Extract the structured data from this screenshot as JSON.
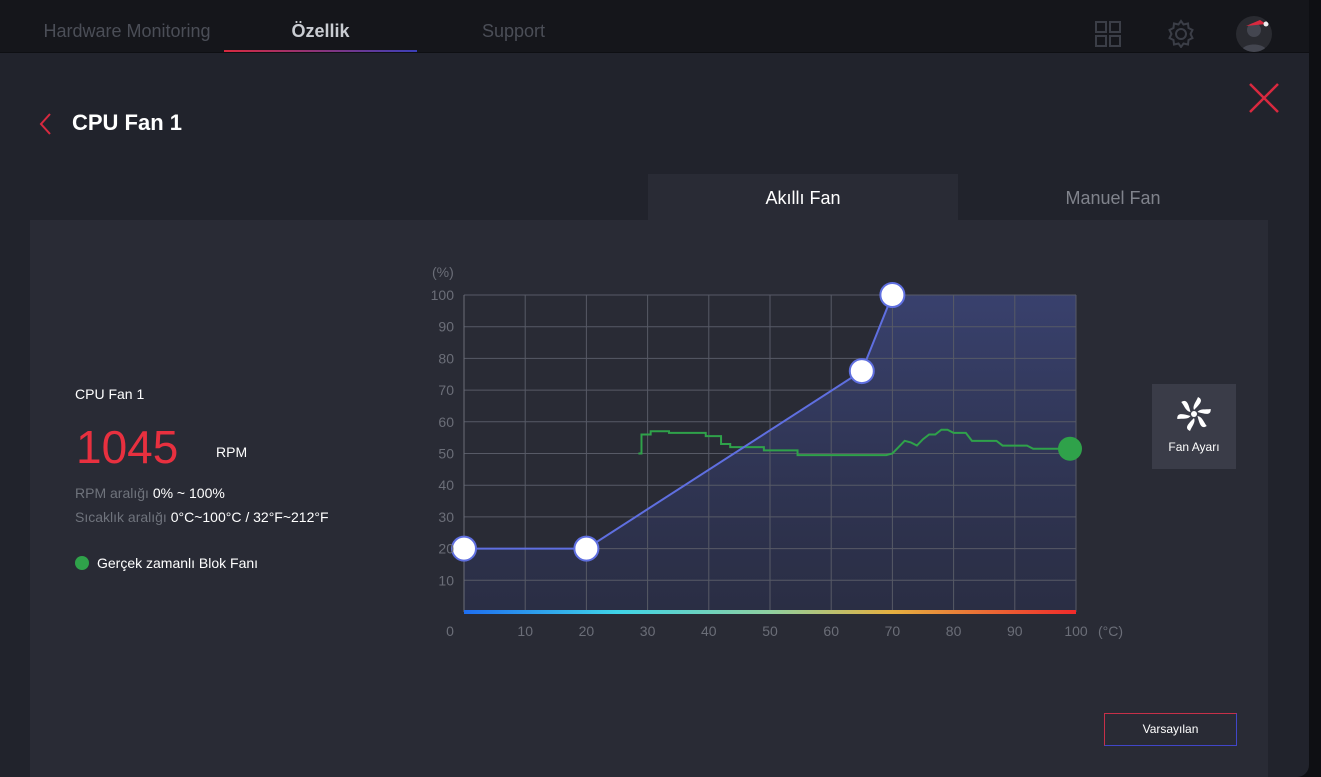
{
  "nav": {
    "tabs": [
      {
        "label": "Hardware Monitoring",
        "active": false
      },
      {
        "label": "Özellik",
        "active": true
      },
      {
        "label": "Support",
        "active": false
      }
    ],
    "icons": [
      "grid-icon",
      "gear-icon",
      "avatar"
    ]
  },
  "header": {
    "title": "CPU Fan 1"
  },
  "mode_tabs": [
    {
      "label": "Akıllı Fan",
      "active": true
    },
    {
      "label": "Manuel Fan",
      "active": false
    }
  ],
  "info": {
    "fan_name": "CPU Fan 1",
    "rpm": "1045",
    "rpm_unit": "RPM",
    "rpm_range_label": "RPM aralığı",
    "rpm_range_value": "0% ~ 100%",
    "temp_range_label": "Sıcaklık aralığı",
    "temp_range_value": "0°C~100°C / 32°F~212°F",
    "legend_label": "Gerçek zamanlı Blok Fanı"
  },
  "fan_settings_label": "Fan Ayarı",
  "default_button": "Varsayılan",
  "colors": {
    "accent_red": "#e8303f",
    "curve": "#5f6fe0",
    "realtime": "#2fa24a"
  },
  "chart_data": {
    "type": "line",
    "xlabel": "(°C)",
    "ylabel": "(%)",
    "xlim": [
      0,
      100
    ],
    "ylim": [
      0,
      100
    ],
    "x_ticks": [
      0,
      10,
      20,
      30,
      40,
      50,
      60,
      70,
      80,
      90,
      100
    ],
    "y_ticks": [
      10,
      20,
      30,
      40,
      50,
      60,
      70,
      80,
      90,
      100
    ],
    "grid": true,
    "series": [
      {
        "role": "fan-curve",
        "points": [
          [
            0,
            20
          ],
          [
            20,
            20
          ],
          [
            65,
            76
          ],
          [
            70,
            100
          ],
          [
            100,
            100
          ]
        ]
      },
      {
        "role": "realtime",
        "points": [
          [
            28.5,
            50
          ],
          [
            29,
            50
          ],
          [
            29,
            56
          ],
          [
            30.5,
            56
          ],
          [
            30.5,
            57
          ],
          [
            33.5,
            57
          ],
          [
            33.5,
            56.5
          ],
          [
            39.5,
            56.5
          ],
          [
            39.5,
            55.5
          ],
          [
            42,
            55.5
          ],
          [
            42,
            53
          ],
          [
            43.5,
            53
          ],
          [
            43.5,
            52
          ],
          [
            49,
            52
          ],
          [
            49,
            51
          ],
          [
            54.5,
            51
          ],
          [
            54.5,
            49.5
          ],
          [
            69,
            49.5
          ],
          [
            70,
            50
          ],
          [
            71,
            52
          ],
          [
            72,
            54
          ],
          [
            73,
            53.5
          ],
          [
            74,
            52.5
          ],
          [
            75,
            54.5
          ],
          [
            76,
            56
          ],
          [
            77,
            56
          ],
          [
            78,
            57.5
          ],
          [
            79,
            57.5
          ],
          [
            80,
            56.5
          ],
          [
            82,
            56.5
          ],
          [
            83,
            54
          ],
          [
            87,
            54
          ],
          [
            88,
            52.5
          ],
          [
            92,
            52.5
          ],
          [
            93,
            51.5
          ],
          [
            100,
            51.5
          ]
        ]
      }
    ],
    "current_point": [
      100,
      51.5
    ]
  }
}
